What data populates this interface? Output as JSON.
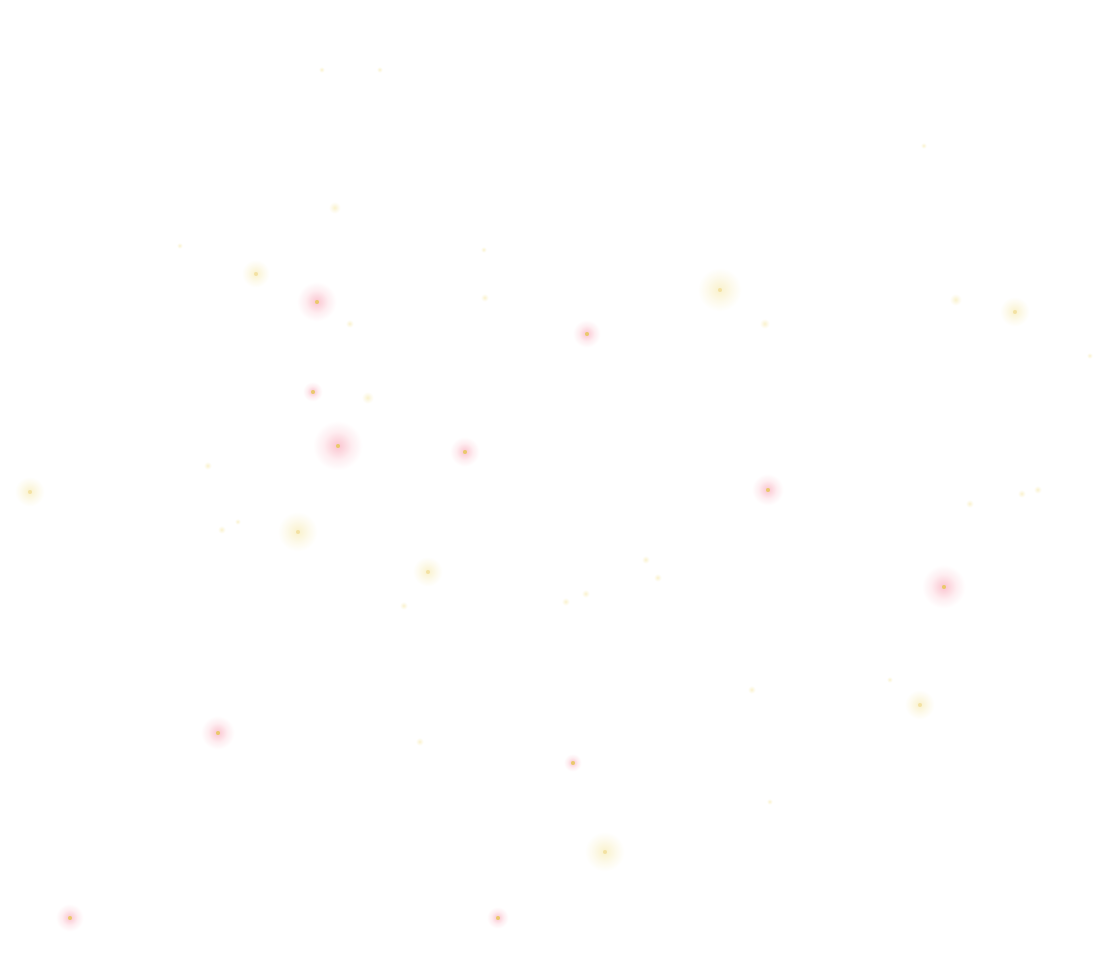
{
  "background": "#ffffff",
  "colors": {
    "pink_glow": "#f9a8b8",
    "yellow_glow": "#f5e6a0",
    "core": "#e8c860"
  }
}
